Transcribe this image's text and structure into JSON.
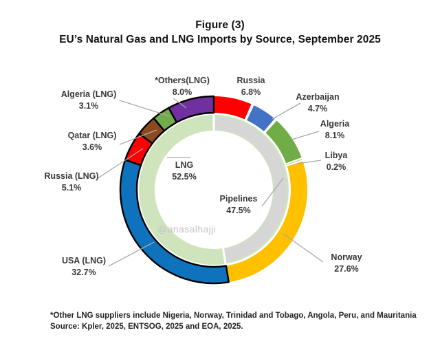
{
  "chart_data": {
    "type": "pie",
    "subtype": "double-donut",
    "title": "Figure (3)",
    "subtitle": "EU’s Natural Gas and LNG Imports by Source, September 2025",
    "units": "percent share",
    "legend_position": "none",
    "start_angle": "12 o'clock, clockwise",
    "inner_ring": [
      {
        "label": "LNG",
        "pct_label": "52.5%",
        "value": 52.5,
        "color": "#cfe4bd"
      },
      {
        "label": "Pipelines",
        "pct_label": "47.5%",
        "value": 47.5,
        "color": "#d6d6d6"
      }
    ],
    "outer_ring": [
      {
        "label": "Russia",
        "pct_label": "6.8%",
        "value": 6.8,
        "color": "#fe0000",
        "group": "pipeline"
      },
      {
        "label": "Azerbaijan",
        "pct_label": "4.7%",
        "value": 4.7,
        "color": "#4472c4",
        "group": "pipeline"
      },
      {
        "label": "Algeria",
        "pct_label": "8.1%",
        "value": 8.1,
        "color": "#70ad47",
        "group": "pipeline"
      },
      {
        "label": "Libya",
        "pct_label": "0.2%",
        "value": 0.2,
        "color": "#70ad47",
        "group": "pipeline"
      },
      {
        "label": "Norway",
        "pct_label": "27.6%",
        "value": 27.6,
        "color": "#ffc000",
        "group": "pipeline"
      },
      {
        "label": "USA (LNG)",
        "pct_label": "32.7%",
        "value": 32.7,
        "color": "#0f72bc",
        "group": "lng"
      },
      {
        "label": "Russia (LNG)",
        "pct_label": "5.1%",
        "value": 5.1,
        "color": "#fe0000",
        "group": "lng"
      },
      {
        "label": "Qatar (LNG)",
        "pct_label": "3.6%",
        "value": 3.6,
        "color": "#8b4a1e",
        "group": "lng"
      },
      {
        "label": "Algeria (LNG)",
        "pct_label": "3.1%",
        "value": 3.1,
        "color": "#6fac4a",
        "group": "lng"
      },
      {
        "label": "*Others(LNG)",
        "pct_label": "8.0%",
        "value": 8.0,
        "color": "#7030a0",
        "group": "lng"
      }
    ],
    "lng_outline_color": "#000000",
    "ring_gap_color": "#ffffff"
  },
  "watermark": "@anasalhajji",
  "footnote": "*Other LNG suppliers include Nigeria, Norway, Trinidad and Tobago, Angola, Peru, and Mauritania",
  "source_line": "Source: Kpler, 2025, ENTSOG, 2025  and EOA, 2025."
}
